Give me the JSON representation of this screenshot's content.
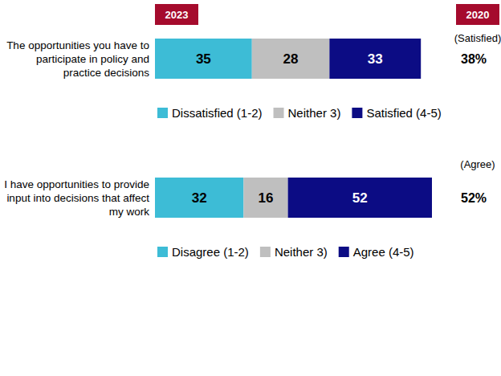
{
  "chart_data": [
    {
      "type": "bar",
      "orientation": "horizontal",
      "stacked": true,
      "data_labels": true,
      "tick_labels": false,
      "annotations": [
        "2023",
        "2020"
      ],
      "categories": [
        "The opportunities you have to participate in policy and practice decisions"
      ],
      "series": [
        {
          "name": "Dissatisfied (1-2)",
          "color": "#3dbcd6",
          "values": [
            35
          ]
        },
        {
          "name": "Neither 3)",
          "color": "#bfbfbf",
          "values": [
            28
          ]
        },
        {
          "name": "Satisfied (4-5)",
          "color": "#0c0c84",
          "values": [
            33
          ]
        }
      ],
      "xlim": [
        0,
        100
      ],
      "comparison_label": "(Satisfied)",
      "comparison_value": 38,
      "comparison_value_label": "38%"
    },
    {
      "type": "bar",
      "orientation": "horizontal",
      "stacked": true,
      "data_labels": true,
      "tick_labels": false,
      "categories": [
        "I have opportunities to provide input into decisions that affect my work"
      ],
      "series": [
        {
          "name": "Disagree (1-2)",
          "color": "#3dbcd6",
          "values": [
            32
          ]
        },
        {
          "name": "Neither 3)",
          "color": "#bfbfbf",
          "values": [
            16
          ]
        },
        {
          "name": "Agree (4-5)",
          "color": "#0c0c84",
          "values": [
            52
          ]
        }
      ],
      "xlim": [
        0,
        100
      ],
      "comparison_label": "(Agree)",
      "comparison_value": 52,
      "comparison_value_label": "52%"
    }
  ]
}
